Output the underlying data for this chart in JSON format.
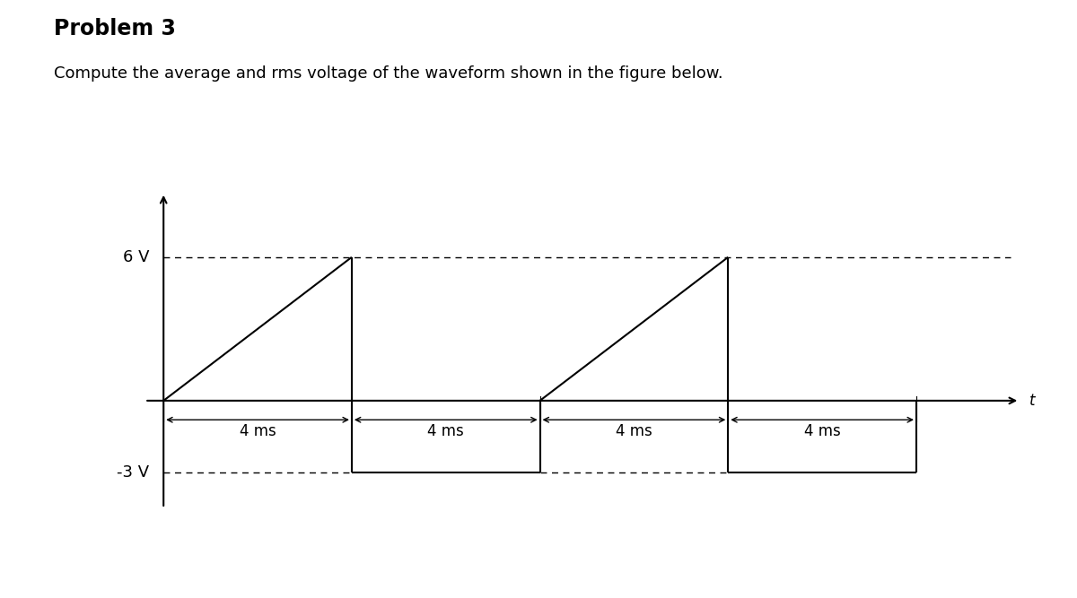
{
  "title": "Problem 3",
  "subtitle": "Compute the average and rms voltage of the waveform shown in the figure below.",
  "title_fontsize": 17,
  "subtitle_fontsize": 13,
  "background_color": "#ffffff",
  "waveform_color": "#000000",
  "waveform_linewidth": 1.5,
  "v_high": 6,
  "v_low": -3,
  "xlabel": "t",
  "ref_6v_label": "6 V",
  "ref_neg3v_label": "-3 V",
  "dashed_color": "#000000",
  "ms_labels": [
    "4 ms",
    "4 ms",
    "4 ms",
    "4 ms"
  ],
  "ms_label_fontsize": 12,
  "ref_label_fontsize": 13,
  "ylim": [
    -5.0,
    9.5
  ],
  "xlim": [
    -0.5,
    18.5
  ],
  "t_intervals": [
    [
      0,
      4
    ],
    [
      4,
      8
    ],
    [
      8,
      12
    ],
    [
      12,
      16
    ]
  ]
}
